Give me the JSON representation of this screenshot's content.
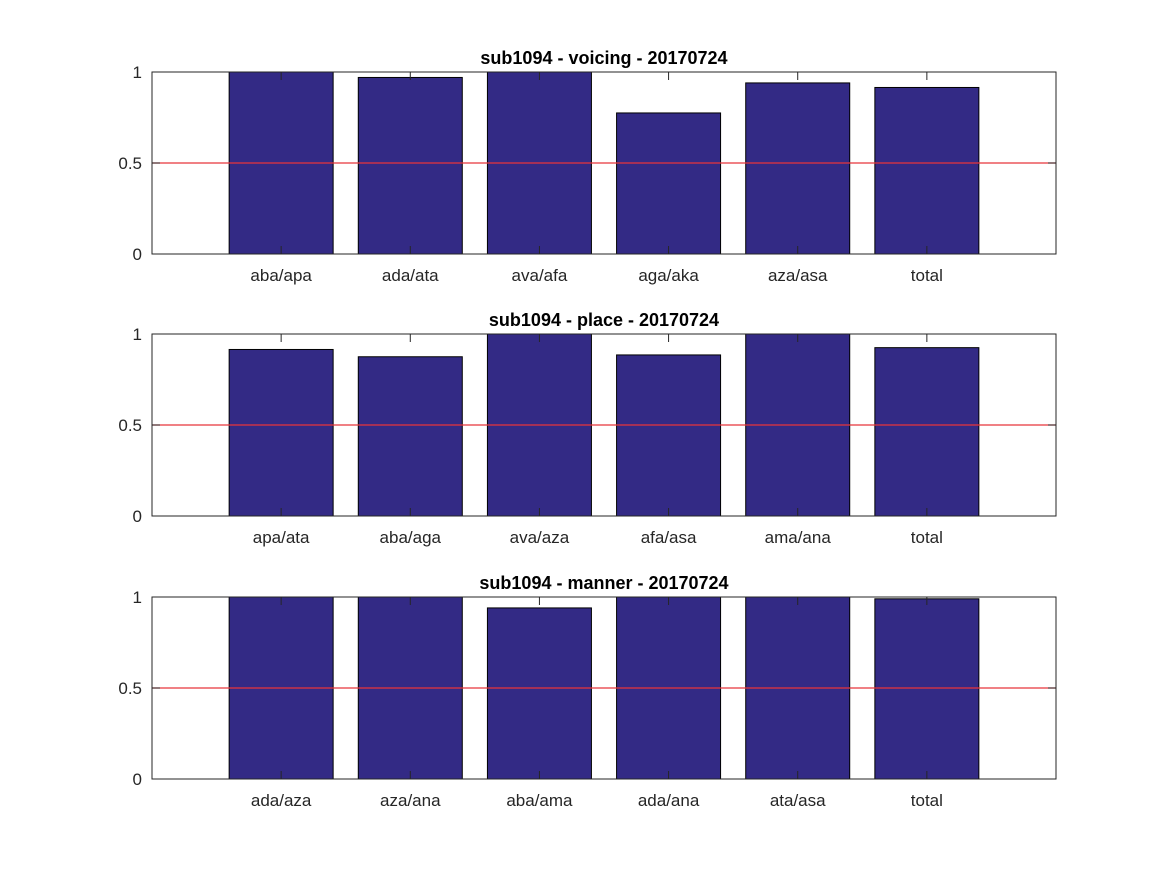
{
  "chart_data": [
    {
      "type": "bar",
      "title": "sub1094 - voicing - 20170724",
      "categories": [
        "aba/apa",
        "ada/ata",
        "ava/afa",
        "aga/aka",
        "aza/asa",
        "total"
      ],
      "values": [
        1.0,
        0.97,
        1.0,
        0.775,
        0.94,
        0.915
      ],
      "ylim": [
        0,
        1
      ],
      "yticks": [
        0,
        0.5,
        1
      ],
      "ytick_labels": [
        "0",
        "0.5",
        "1"
      ],
      "reference_line": 0.5
    },
    {
      "type": "bar",
      "title": "sub1094 - place - 20170724",
      "categories": [
        "apa/ata",
        "aba/aga",
        "ava/aza",
        "afa/asa",
        "ama/ana",
        "total"
      ],
      "values": [
        0.915,
        0.875,
        1.0,
        0.885,
        1.0,
        0.925
      ],
      "ylim": [
        0,
        1
      ],
      "yticks": [
        0,
        0.5,
        1
      ],
      "ytick_labels": [
        "0",
        "0.5",
        "1"
      ],
      "reference_line": 0.5
    },
    {
      "type": "bar",
      "title": "sub1094 - manner - 20170724",
      "categories": [
        "ada/aza",
        "aza/ana",
        "aba/ama",
        "ada/ana",
        "ata/asa",
        "total"
      ],
      "values": [
        1.0,
        1.0,
        0.94,
        1.0,
        1.0,
        0.99
      ],
      "ylim": [
        0,
        1
      ],
      "yticks": [
        0,
        0.5,
        1
      ],
      "ytick_labels": [
        "0",
        "0.5",
        "1"
      ],
      "reference_line": 0.5
    }
  ],
  "colors": {
    "bar_fill": "#332a85",
    "bar_edge": "#000000",
    "reference_line": "#e8353a",
    "axis": "#262626"
  }
}
